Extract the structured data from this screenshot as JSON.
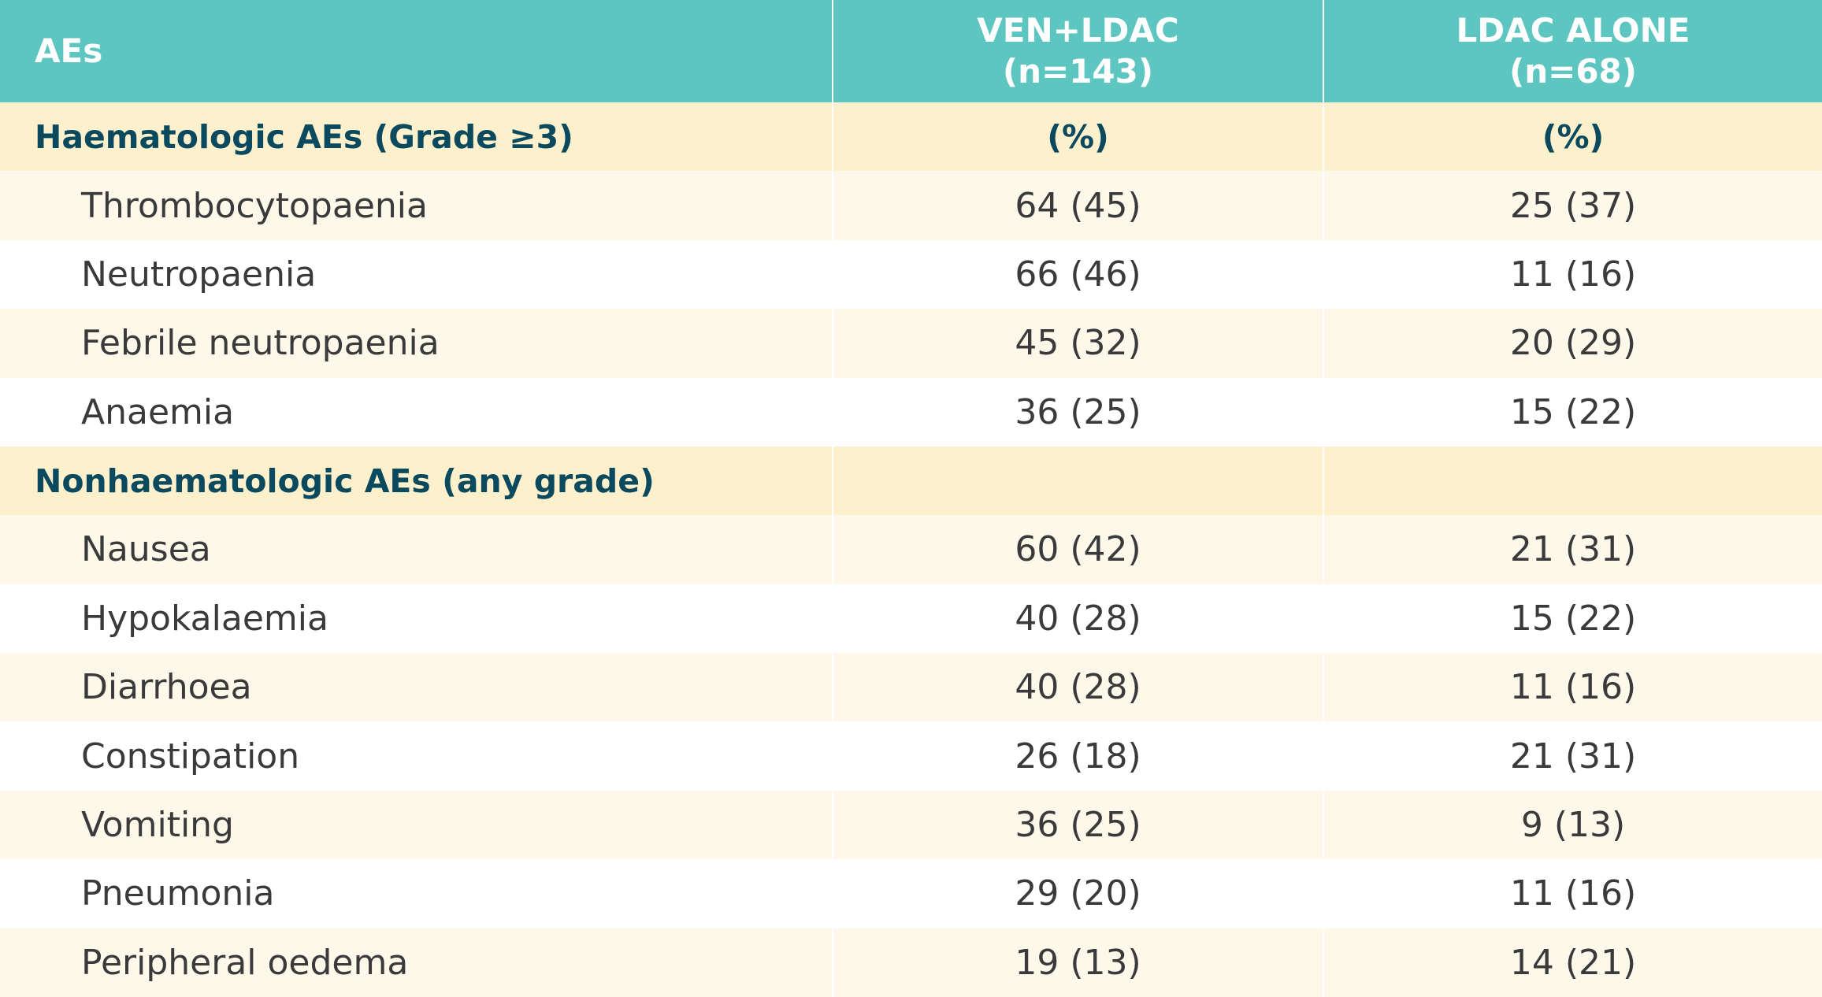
{
  "table": {
    "header": {
      "label": "AEs",
      "columns": [
        [
          "VEN+LDAC",
          "(n=143)"
        ],
        [
          "LDAC ALONE",
          "(n=68)"
        ]
      ]
    },
    "sections": [
      {
        "title": "Haematologic AEs (Grade ≥3)",
        "units": [
          "(%)",
          "(%)"
        ],
        "rows": [
          [
            "Thrombocytopaenia",
            "64 (45)",
            "25 (37)"
          ],
          [
            "Neutropaenia",
            "66 (46)",
            "11 (16)"
          ],
          [
            "Febrile neutropaenia",
            "45 (32)",
            "20 (29)"
          ],
          [
            "Anaemia",
            "36 (25)",
            "15 (22)"
          ]
        ]
      },
      {
        "title": "Nonhaematologic AEs (any grade)",
        "units": [],
        "rows": [
          [
            "Nausea",
            "60 (42)",
            "21 (31)"
          ],
          [
            "Hypokalaemia",
            "40 (28)",
            "15 (22)"
          ],
          [
            "Diarrhoea",
            "40 (28)",
            "11 (16)"
          ],
          [
            "Constipation",
            "26 (18)",
            "21 (31)"
          ],
          [
            "Vomiting",
            "36 (25)",
            "9 (13)"
          ],
          [
            "Pneumonia",
            "29 (20)",
            "11 (16)"
          ],
          [
            "Peripheral oedema",
            "19 (13)",
            "14 (21)"
          ]
        ]
      }
    ]
  }
}
